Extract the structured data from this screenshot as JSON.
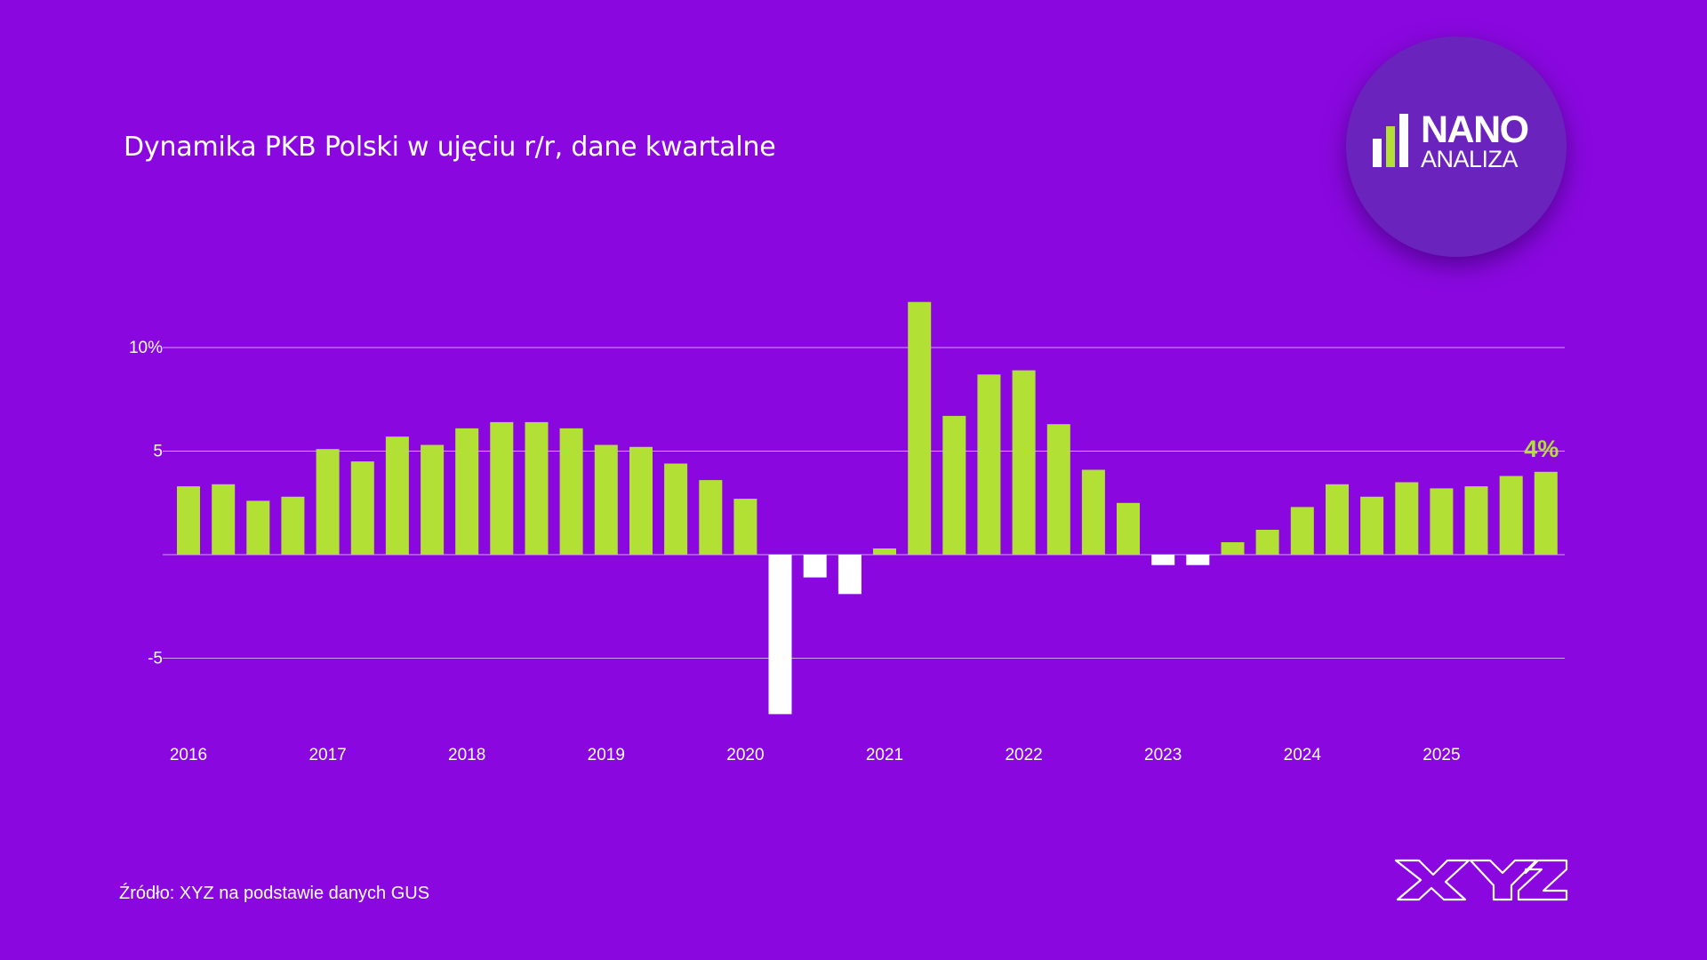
{
  "header": {
    "title": "Dynamika PKB Polski w ujęciu r/r, dane kwartalne"
  },
  "footer": {
    "source": "Źródło: XYZ na podstawie danych GUS",
    "brand_logo": "XYZ"
  },
  "badge": {
    "line1": "NANO",
    "line2": "ANALIZA",
    "icon": "bar-chart-icon"
  },
  "colors": {
    "background": "#8a08df",
    "positive_bar": "#b2e034",
    "negative_bar": "#ffffff",
    "gridline": "#c9a2f2",
    "badge_circle": "#6a23bd"
  },
  "chart_data": {
    "type": "bar",
    "title": "Dynamika PKB Polski w ujęciu r/r, dane kwartalne",
    "xlabel": "",
    "ylabel": "",
    "unit": "%",
    "ylim": [
      -8,
      12.5
    ],
    "yticks": [
      {
        "value": 10,
        "label": "10%"
      },
      {
        "value": 5,
        "label": "5"
      },
      {
        "value": -5,
        "label": "-5"
      }
    ],
    "year_labels": [
      "2016",
      "2017",
      "2018",
      "2019",
      "2020",
      "2021",
      "2022",
      "2023",
      "2024",
      "2025"
    ],
    "categories": [
      "2016 Q1",
      "2016 Q2",
      "2016 Q3",
      "2016 Q4",
      "2017 Q1",
      "2017 Q2",
      "2017 Q3",
      "2017 Q4",
      "2018 Q1",
      "2018 Q2",
      "2018 Q3",
      "2018 Q4",
      "2019 Q1",
      "2019 Q2",
      "2019 Q3",
      "2019 Q4",
      "2020 Q1",
      "2020 Q2",
      "2020 Q3",
      "2020 Q4",
      "2021 Q1",
      "2021 Q2",
      "2021 Q3",
      "2021 Q4",
      "2022 Q1",
      "2022 Q2",
      "2022 Q3",
      "2022 Q4",
      "2023 Q1",
      "2023 Q2",
      "2023 Q3",
      "2023 Q4",
      "2024 Q1",
      "2024 Q2",
      "2024 Q3",
      "2024 Q4",
      "2025 Q1",
      "2025 Q2",
      "2025 Q3",
      "2025 Q4"
    ],
    "values": [
      3.3,
      3.4,
      2.6,
      2.8,
      5.1,
      4.5,
      5.7,
      5.3,
      6.1,
      6.4,
      6.4,
      6.1,
      5.3,
      5.2,
      4.4,
      3.6,
      2.7,
      -7.7,
      -1.1,
      -1.9,
      0.3,
      12.2,
      6.7,
      8.7,
      8.9,
      6.3,
      4.1,
      2.5,
      -0.5,
      -0.5,
      0.6,
      1.2,
      2.3,
      3.4,
      2.8,
      3.5,
      3.2,
      3.3,
      3.8,
      4.0
    ],
    "annotation": {
      "label": "4%",
      "category": "2025 Q4"
    },
    "grid": true,
    "legend": "none"
  }
}
